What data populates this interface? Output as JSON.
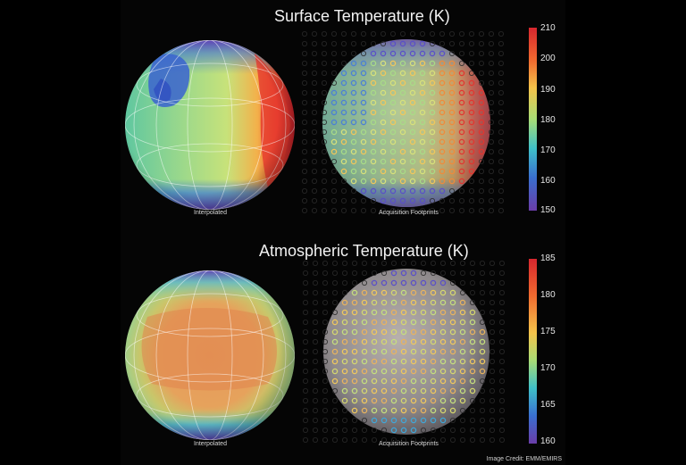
{
  "surface": {
    "title": "Surface  Temperature (K)",
    "left_caption": "Interpolated",
    "right_caption": "Acquisition Footprints",
    "colorbar_ticks": [
      "210",
      "200",
      "190",
      "180",
      "170",
      "160",
      "150"
    ]
  },
  "atmosphere": {
    "title": "Atmospheric Temperature (K)",
    "left_caption": "Interpolated",
    "right_caption": "Acquisition Footprints",
    "colorbar_ticks": [
      "185",
      "180",
      "175",
      "170",
      "165",
      "160"
    ]
  },
  "credit": "Image Credit: EMM/EMIRS",
  "colors": {
    "scale": [
      "#d7262e",
      "#f06a2f",
      "#f4c34a",
      "#c8e06a",
      "#7fd18a",
      "#3aa3d9",
      "#4250b8",
      "#6a3da8"
    ]
  }
}
